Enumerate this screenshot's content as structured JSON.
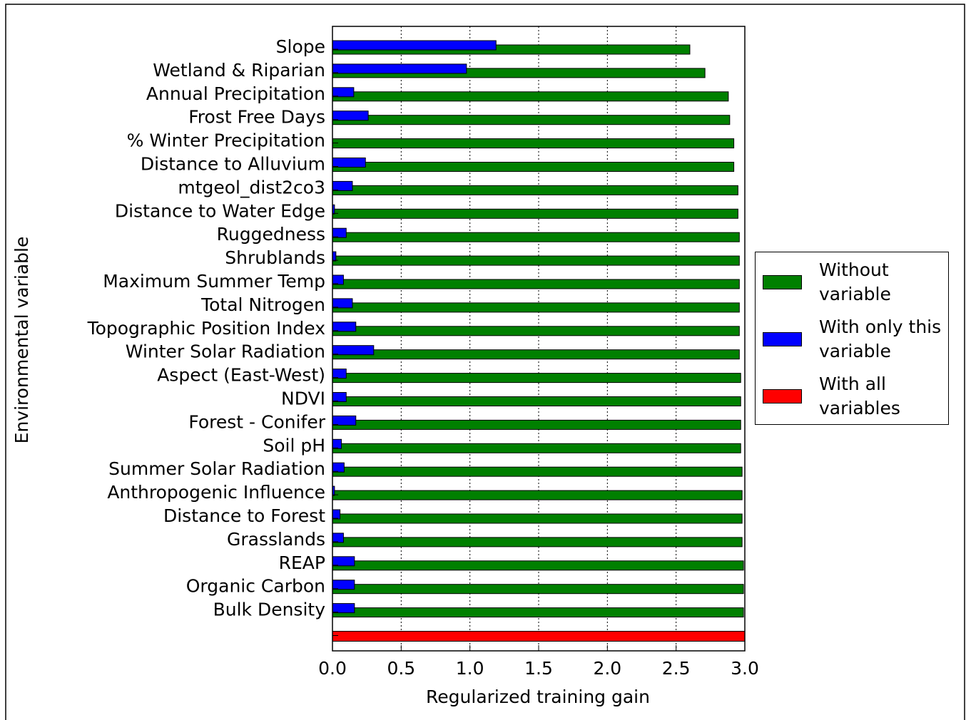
{
  "chart_data": {
    "type": "bar",
    "orientation": "horizontal",
    "x_label": "Regularized training gain",
    "y_label": "Environmental variable",
    "categories": [
      "Slope",
      "Wetland & Riparian",
      "Annual Precipitation",
      "Frost Free Days",
      "% Winter Precipitation",
      "Distance to Alluvium",
      "mtgeol_dist2co3",
      "Distance to Water Edge",
      "Ruggedness",
      "Shrublands",
      "Maximum Summer Temp",
      "Total Nitrogen",
      "Topographic Position Index",
      "Winter Solar Radiation",
      "Aspect (East-West)",
      "NDVI",
      "Forest - Conifer",
      "Soil pH",
      "Summer Solar Radiation",
      "Anthropogenic Influence",
      "Distance to Forest",
      "Grasslands",
      "REAP",
      "Organic Carbon",
      "Bulk Density",
      null
    ],
    "series": [
      {
        "name": "Without variable",
        "color": "#008000",
        "values": [
          2.6,
          2.71,
          2.88,
          2.89,
          2.92,
          2.92,
          2.95,
          2.95,
          2.96,
          2.96,
          2.96,
          2.96,
          2.96,
          2.96,
          2.97,
          2.97,
          2.97,
          2.97,
          2.98,
          2.98,
          2.98,
          2.98,
          2.99,
          2.99,
          2.99,
          null
        ]
      },
      {
        "name": "With only this variable",
        "color": "#0000ff",
        "values": [
          1.19,
          0.975,
          0.155,
          0.26,
          0,
          0.24,
          0.145,
          0.015,
          0.1,
          0.025,
          0.08,
          0.145,
          0.17,
          0.3,
          0.1,
          0.1,
          0.17,
          0.065,
          0.085,
          0.015,
          0.055,
          0.08,
          0.16,
          0.16,
          0.16,
          null
        ]
      },
      {
        "name": "With all variables",
        "color": "#ff0000",
        "values": [
          null,
          null,
          null,
          null,
          null,
          null,
          null,
          null,
          null,
          null,
          null,
          null,
          null,
          null,
          null,
          null,
          null,
          null,
          null,
          null,
          null,
          null,
          null,
          null,
          null,
          3.0
        ]
      }
    ],
    "xlim": [
      0,
      3.0
    ],
    "xticks": [
      {
        "value": 0,
        "label": "0.0"
      },
      0.5,
      {
        "value": 1,
        "label": "1.0"
      },
      1.5,
      {
        "value": 2,
        "label": "2.0"
      },
      2.5,
      {
        "value": 3,
        "label": "3.0"
      }
    ],
    "grid": true,
    "legend": "right"
  }
}
